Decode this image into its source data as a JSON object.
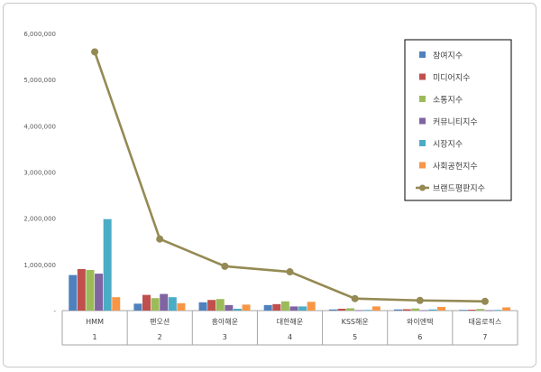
{
  "chart_data": {
    "type": "bar",
    "categories": [
      "HMM",
      "팬오션",
      "흥아해운",
      "대한해운",
      "KSS해운",
      "와이엔텍",
      "태웅로직스"
    ],
    "category_numbers": [
      "1",
      "2",
      "3",
      "4",
      "5",
      "6",
      "7"
    ],
    "ylim": [
      0,
      6000000
    ],
    "y_ticks": [
      "-",
      "1,000,000",
      "2,000,000",
      "3,000,000",
      "4,000,000",
      "5,000,000",
      "6,000,000"
    ],
    "y_tick_values": [
      0,
      1000000,
      2000000,
      3000000,
      4000000,
      5000000,
      6000000
    ],
    "grid": false,
    "legend_position": "top-right",
    "series": [
      {
        "name": "참여지수",
        "type": "bar",
        "color": "#4f81bd",
        "values": [
          770000,
          150000,
          180000,
          120000,
          25000,
          25000,
          15000
        ]
      },
      {
        "name": "미디어지수",
        "type": "bar",
        "color": "#c0504d",
        "values": [
          900000,
          340000,
          230000,
          140000,
          40000,
          30000,
          20000
        ]
      },
      {
        "name": "소통지수",
        "type": "bar",
        "color": "#9bbb59",
        "values": [
          880000,
          270000,
          250000,
          200000,
          50000,
          45000,
          35000
        ]
      },
      {
        "name": "커뮤니티지수",
        "type": "bar",
        "color": "#8064a2",
        "values": [
          800000,
          360000,
          120000,
          90000,
          10000,
          10000,
          8000
        ]
      },
      {
        "name": "시장지수",
        "type": "bar",
        "color": "#4bacc6",
        "values": [
          1980000,
          290000,
          40000,
          90000,
          15000,
          25000,
          15000
        ]
      },
      {
        "name": "사회공헌지수",
        "type": "bar",
        "color": "#f79646",
        "values": [
          290000,
          160000,
          130000,
          190000,
          90000,
          80000,
          70000
        ]
      },
      {
        "name": "브랜드평판지수",
        "type": "line",
        "color": "#948a54",
        "values": [
          5600000,
          1550000,
          960000,
          840000,
          260000,
          220000,
          200000
        ]
      }
    ]
  }
}
